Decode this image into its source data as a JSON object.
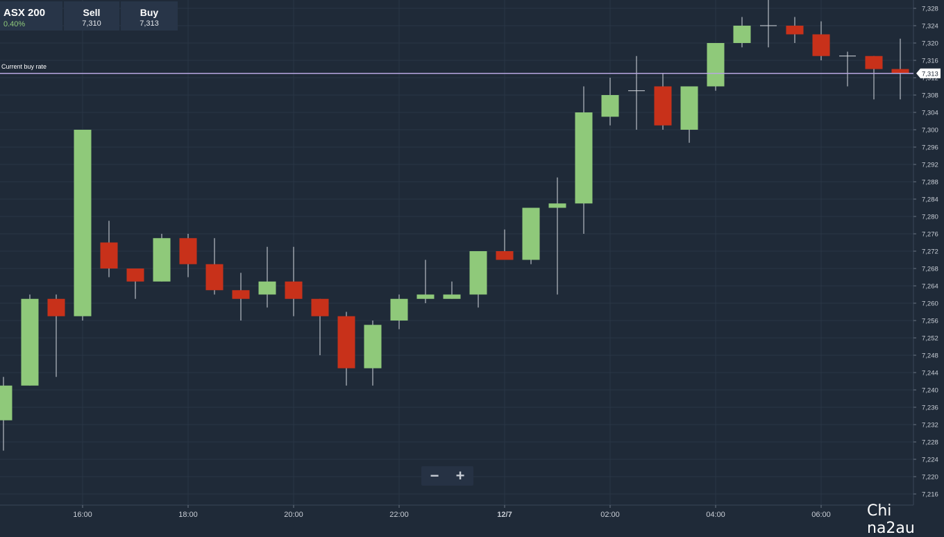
{
  "header": {
    "instrument": "ASX 200",
    "change": "0.40%",
    "sell_label": "Sell",
    "sell_value": "7,310",
    "buy_label": "Buy",
    "buy_value": "7,313"
  },
  "current_rate": {
    "label": "Current buy rate",
    "value": 7313,
    "value_text": "7,313",
    "color": "#b7a6e0"
  },
  "zoom": {
    "minus": "−",
    "plus": "+"
  },
  "watermark": "Chi na2au",
  "colors": {
    "up": "#8fc97a",
    "down": "#c8311a",
    "background": "#1f2a38",
    "grid": "#2a3646"
  },
  "chart_data": {
    "type": "candlestick",
    "ylim": [
      7214,
      7330
    ],
    "y_ticks": [
      7216,
      7220,
      7224,
      7228,
      7232,
      7236,
      7240,
      7244,
      7248,
      7252,
      7256,
      7260,
      7264,
      7268,
      7272,
      7276,
      7280,
      7284,
      7288,
      7292,
      7296,
      7300,
      7304,
      7308,
      7312,
      7316,
      7320,
      7324,
      7328
    ],
    "y_tick_labels": [
      "7,216",
      "7,220",
      "7,224",
      "7,228",
      "7,232",
      "7,236",
      "7,240",
      "7,244",
      "7,248",
      "7,252",
      "7,256",
      "7,260",
      "7,264",
      "7,268",
      "7,272",
      "7,276",
      "7,280",
      "7,284",
      "7,288",
      "7,292",
      "7,296",
      "7,300",
      "7,304",
      "7,308",
      "7,312",
      "7,316",
      "7,320",
      "7,324",
      "7,328"
    ],
    "x_ticks": [
      {
        "label": "16:00",
        "hour": 16
      },
      {
        "label": "18:00",
        "hour": 18
      },
      {
        "label": "20:00",
        "hour": 20
      },
      {
        "label": "22:00",
        "hour": 22
      },
      {
        "label": "12/7",
        "hour": 24
      },
      {
        "label": "02:00",
        "hour": 26
      },
      {
        "label": "04:00",
        "hour": 28
      },
      {
        "label": "06:00",
        "hour": 30
      }
    ],
    "candles": [
      {
        "hour": 14.5,
        "o": 7233,
        "h": 7243,
        "l": 7226,
        "c": 7241
      },
      {
        "hour": 15.0,
        "o": 7241,
        "h": 7262,
        "l": 7241,
        "c": 7261
      },
      {
        "hour": 15.5,
        "o": 7261,
        "h": 7262,
        "l": 7243,
        "c": 7257
      },
      {
        "hour": 16.0,
        "o": 7257,
        "h": 7300,
        "l": 7256,
        "c": 7300
      },
      {
        "hour": 16.5,
        "o": 7274,
        "h": 7279,
        "l": 7266,
        "c": 7268
      },
      {
        "hour": 17.0,
        "o": 7268,
        "h": 7268,
        "l": 7261,
        "c": 7265
      },
      {
        "hour": 17.5,
        "o": 7265,
        "h": 7276,
        "l": 7265,
        "c": 7275
      },
      {
        "hour": 18.0,
        "o": 7275,
        "h": 7276,
        "l": 7266,
        "c": 7269
      },
      {
        "hour": 18.5,
        "o": 7269,
        "h": 7275,
        "l": 7262,
        "c": 7263
      },
      {
        "hour": 19.0,
        "o": 7263,
        "h": 7267,
        "l": 7256,
        "c": 7261
      },
      {
        "hour": 19.5,
        "o": 7262,
        "h": 7273,
        "l": 7259,
        "c": 7265
      },
      {
        "hour": 20.0,
        "o": 7265,
        "h": 7273,
        "l": 7257,
        "c": 7261
      },
      {
        "hour": 20.5,
        "o": 7261,
        "h": 7261,
        "l": 7248,
        "c": 7257
      },
      {
        "hour": 21.0,
        "o": 7257,
        "h": 7258,
        "l": 7241,
        "c": 7245
      },
      {
        "hour": 21.5,
        "o": 7245,
        "h": 7256,
        "l": 7241,
        "c": 7255
      },
      {
        "hour": 22.0,
        "o": 7256,
        "h": 7262,
        "l": 7254,
        "c": 7261
      },
      {
        "hour": 22.5,
        "o": 7261,
        "h": 7270,
        "l": 7260,
        "c": 7262
      },
      {
        "hour": 23.0,
        "o": 7261,
        "h": 7265,
        "l": 7261,
        "c": 7262
      },
      {
        "hour": 23.5,
        "o": 7262,
        "h": 7272,
        "l": 7259,
        "c": 7272
      },
      {
        "hour": 24.0,
        "o": 7272,
        "h": 7277,
        "l": 7270,
        "c": 7270
      },
      {
        "hour": 24.5,
        "o": 7270,
        "h": 7282,
        "l": 7269,
        "c": 7282
      },
      {
        "hour": 25.0,
        "o": 7282,
        "h": 7289,
        "l": 7262,
        "c": 7283
      },
      {
        "hour": 25.5,
        "o": 7283,
        "h": 7310,
        "l": 7276,
        "c": 7304
      },
      {
        "hour": 26.0,
        "o": 7303,
        "h": 7312,
        "l": 7301,
        "c": 7308
      },
      {
        "hour": 26.5,
        "o": 7309,
        "h": 7317,
        "l": 7300,
        "c": 7309
      },
      {
        "hour": 27.0,
        "o": 7310,
        "h": 7313,
        "l": 7300,
        "c": 7301
      },
      {
        "hour": 27.5,
        "o": 7300,
        "h": 7310,
        "l": 7297,
        "c": 7310
      },
      {
        "hour": 28.0,
        "o": 7310,
        "h": 7320,
        "l": 7309,
        "c": 7320
      },
      {
        "hour": 28.5,
        "o": 7320,
        "h": 7326,
        "l": 7319,
        "c": 7324
      },
      {
        "hour": 29.0,
        "o": 7324,
        "h": 7330,
        "l": 7319,
        "c": 7324
      },
      {
        "hour": 29.5,
        "o": 7324,
        "h": 7326,
        "l": 7320,
        "c": 7322
      },
      {
        "hour": 30.0,
        "o": 7322,
        "h": 7325,
        "l": 7316,
        "c": 7317
      },
      {
        "hour": 30.5,
        "o": 7317,
        "h": 7318,
        "l": 7310,
        "c": 7317
      },
      {
        "hour": 31.0,
        "o": 7317,
        "h": 7317,
        "l": 7307,
        "c": 7314
      },
      {
        "hour": 31.5,
        "o": 7314,
        "h": 7321,
        "l": 7307,
        "c": 7313
      }
    ]
  }
}
